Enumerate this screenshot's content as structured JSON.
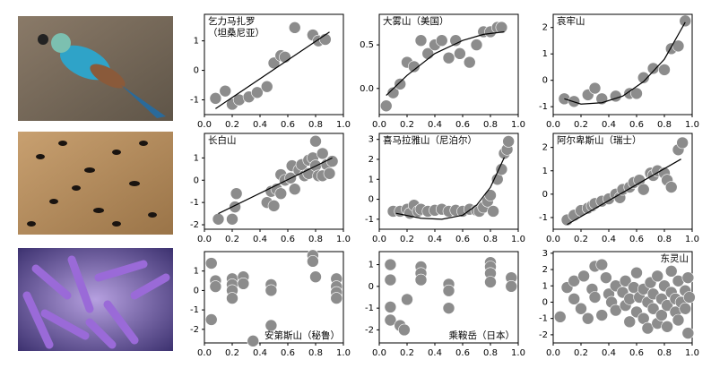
{
  "chart_data": [
    {
      "type": "scatter",
      "title": [
        "乞力马扎罗",
        "（坦桑尼亚）"
      ],
      "title_corner": "top-left",
      "color": "#8c8c8c",
      "xlim": [
        0,
        1
      ],
      "xticks": [
        {
          "value": 0,
          "label": "0.0"
        },
        0.2,
        0.4,
        0.6,
        0.8,
        {
          "value": 1,
          "label": "1.0"
        }
      ],
      "ylim": [
        -1.5,
        1.9
      ],
      "yticks": [
        -1,
        0,
        1
      ],
      "x": [
        0.08,
        0.15,
        0.2,
        0.25,
        0.32,
        0.38,
        0.45,
        0.5,
        0.55,
        0.58,
        0.65,
        0.78,
        0.82,
        0.87
      ],
      "y": [
        -0.95,
        -0.7,
        -1.15,
        -1.0,
        -0.9,
        -0.75,
        -0.55,
        0.25,
        0.5,
        0.45,
        1.45,
        1.2,
        1.0,
        1.05
      ],
      "fit": {
        "x": [
          0.08,
          0.9
        ],
        "y": [
          -1.3,
          1.3
        ]
      }
    },
    {
      "type": "scatter",
      "title": [
        "大雾山（美国）"
      ],
      "title_corner": "top-left",
      "color": "#8c8c8c",
      "xlim": [
        0,
        1
      ],
      "xticks": [
        {
          "value": 0,
          "label": "0.0"
        },
        0.2,
        0.4,
        0.6,
        0.8,
        {
          "value": 1,
          "label": "1.0"
        }
      ],
      "ylim": [
        -0.3,
        0.85
      ],
      "yticks": [
        {
          "value": 0,
          "label": "0.0"
        },
        0.5
      ],
      "x": [
        0.05,
        0.1,
        0.15,
        0.2,
        0.25,
        0.3,
        0.35,
        0.4,
        0.45,
        0.5,
        0.55,
        0.58,
        0.65,
        0.7,
        0.75,
        0.8,
        0.85,
        0.88
      ],
      "y": [
        -0.2,
        -0.05,
        0.05,
        0.3,
        0.25,
        0.55,
        0.4,
        0.5,
        0.55,
        0.35,
        0.55,
        0.4,
        0.3,
        0.5,
        0.65,
        0.65,
        0.7,
        0.7
      ],
      "fit": {
        "x": [
          0.05,
          0.2,
          0.4,
          0.6,
          0.75,
          0.9
        ],
        "y": [
          -0.08,
          0.15,
          0.4,
          0.55,
          0.62,
          0.65
        ]
      }
    },
    {
      "type": "scatter",
      "title": [
        "哀牢山"
      ],
      "title_corner": "top-left",
      "color": "#8c8c8c",
      "xlim": [
        0,
        1
      ],
      "xticks": [
        {
          "value": 0,
          "label": "0.0"
        },
        0.2,
        0.4,
        0.6,
        0.8,
        {
          "value": 1,
          "label": "1.0"
        }
      ],
      "ylim": [
        -1.3,
        2.5
      ],
      "yticks": [
        -1,
        0,
        1,
        2
      ],
      "x": [
        0.08,
        0.15,
        0.25,
        0.3,
        0.35,
        0.45,
        0.55,
        0.6,
        0.65,
        0.72,
        0.8,
        0.85,
        0.9,
        0.95
      ],
      "y": [
        -0.7,
        -0.8,
        -0.55,
        -0.3,
        -0.7,
        -0.6,
        -0.5,
        -0.5,
        0.1,
        0.45,
        0.4,
        1.2,
        1.3,
        2.25
      ],
      "fit": {
        "x": [
          0.08,
          0.2,
          0.35,
          0.5,
          0.65,
          0.8,
          0.95
        ],
        "y": [
          -0.7,
          -0.9,
          -0.85,
          -0.6,
          -0.05,
          0.8,
          2.2
        ]
      }
    },
    {
      "type": "scatter",
      "title": [
        "长白山"
      ],
      "title_corner": "top-left",
      "color": "#8c8c8c",
      "xlim": [
        0,
        1
      ],
      "xticks": [
        {
          "value": 0,
          "label": "0.0"
        },
        0.2,
        0.4,
        0.6,
        0.8,
        {
          "value": 1,
          "label": "1.0"
        }
      ],
      "ylim": [
        -2.2,
        2.1
      ],
      "yticks": [
        -2,
        -1,
        0,
        1
      ],
      "x": [
        0.1,
        0.2,
        0.22,
        0.23,
        0.45,
        0.48,
        0.5,
        0.52,
        0.55,
        0.55,
        0.58,
        0.62,
        0.63,
        0.65,
        0.68,
        0.7,
        0.72,
        0.75,
        0.75,
        0.78,
        0.8,
        0.8,
        0.82,
        0.85,
        0.85,
        0.88,
        0.9,
        0.92
      ],
      "y": [
        -1.75,
        -1.75,
        -1.2,
        -0.6,
        -1.0,
        -0.5,
        -1.15,
        -0.4,
        -0.6,
        0.25,
        0.0,
        0.1,
        0.65,
        -0.4,
        0.45,
        0.7,
        0.2,
        0.3,
        0.9,
        1.0,
        0.65,
        1.75,
        0.2,
        0.2,
        1.2,
        0.7,
        0.3,
        0.85
      ],
      "fit": {
        "x": [
          0.1,
          0.92
        ],
        "y": [
          -1.5,
          1.0
        ]
      }
    },
    {
      "type": "scatter",
      "title": [
        "喜马拉雅山（尼泊尔）"
      ],
      "title_corner": "top-left",
      "color": "#8c8c8c",
      "xlim": [
        0,
        1
      ],
      "xticks": [
        {
          "value": 0,
          "label": "0.0"
        },
        0.2,
        0.4,
        0.6,
        0.8,
        {
          "value": 1,
          "label": "1.0"
        }
      ],
      "ylim": [
        -1.5,
        3.3
      ],
      "yticks": [
        -1,
        0,
        1,
        2,
        3
      ],
      "x": [
        0.1,
        0.15,
        0.2,
        0.22,
        0.25,
        0.28,
        0.3,
        0.35,
        0.4,
        0.45,
        0.5,
        0.55,
        0.6,
        0.65,
        0.7,
        0.72,
        0.75,
        0.78,
        0.8,
        0.82,
        0.85,
        0.88,
        0.9,
        0.92,
        0.93
      ],
      "y": [
        -0.6,
        -0.6,
        -0.5,
        -0.7,
        -0.3,
        -0.6,
        -0.5,
        -0.6,
        -0.55,
        -0.5,
        -0.6,
        -0.55,
        -0.6,
        -0.5,
        -0.55,
        -0.6,
        -0.4,
        -0.1,
        0.2,
        -0.6,
        1.0,
        1.5,
        2.3,
        2.5,
        2.9
      ],
      "fit": {
        "x": [
          0.12,
          0.3,
          0.45,
          0.6,
          0.7,
          0.8,
          0.9
        ],
        "y": [
          -0.7,
          -0.95,
          -1.0,
          -0.8,
          -0.3,
          0.6,
          2.1
        ]
      }
    },
    {
      "type": "scatter",
      "title": [
        "阿尔卑斯山（瑞士）"
      ],
      "title_corner": "top-left",
      "color": "#8c8c8c",
      "xlim": [
        0,
        1
      ],
      "xticks": [
        {
          "value": 0,
          "label": "0.0"
        },
        0.2,
        0.4,
        0.6,
        0.8,
        {
          "value": 1,
          "label": "1.0"
        }
      ],
      "ylim": [
        -1.5,
        2.6
      ],
      "yticks": [
        -1,
        0,
        1,
        2
      ],
      "x": [
        0.1,
        0.15,
        0.2,
        0.25,
        0.28,
        0.3,
        0.35,
        0.4,
        0.45,
        0.48,
        0.5,
        0.55,
        0.58,
        0.62,
        0.65,
        0.7,
        0.72,
        0.75,
        0.8,
        0.82,
        0.85,
        0.9,
        0.93
      ],
      "y": [
        -1.1,
        -0.9,
        -0.7,
        -0.6,
        -0.5,
        -0.4,
        -0.3,
        -0.2,
        0.0,
        -0.15,
        0.2,
        0.3,
        0.5,
        0.6,
        0.2,
        0.9,
        0.8,
        1.0,
        0.9,
        0.6,
        0.3,
        1.9,
        2.2
      ],
      "fit": {
        "x": [
          0.1,
          0.92
        ],
        "y": [
          -1.3,
          1.5
        ]
      }
    },
    {
      "type": "scatter",
      "title": [
        "安第斯山（秘鲁）"
      ],
      "title_corner": "bottom-right",
      "color": "#8c8c8c",
      "xlim": [
        0,
        1
      ],
      "xticks": [
        {
          "value": 0,
          "label": "0.0"
        },
        0.2,
        0.4,
        0.6,
        0.8,
        {
          "value": 1,
          "label": "1.0"
        }
      ],
      "ylim": [
        -2.7,
        2.0
      ],
      "yticks": [
        -2,
        -1,
        0,
        1
      ],
      "x": [
        0.05,
        0.05,
        0.08,
        0.08,
        0.2,
        0.2,
        0.2,
        0.2,
        0.28,
        0.28,
        0.35,
        0.48,
        0.48,
        0.48,
        0.78,
        0.78,
        0.8,
        0.95,
        0.95,
        0.95,
        0.95
      ],
      "y": [
        1.4,
        -1.5,
        0.5,
        0.2,
        0.6,
        0.3,
        0.0,
        -0.4,
        0.7,
        0.35,
        -2.6,
        0.3,
        0.0,
        -1.8,
        1.8,
        1.5,
        0.7,
        0.6,
        0.2,
        -0.1,
        -0.4
      ]
    },
    {
      "type": "scatter",
      "title": [
        "乘鞍岳（日本）"
      ],
      "title_corner": "bottom-right",
      "color": "#8c8c8c",
      "xlim": [
        0,
        1
      ],
      "xticks": [
        {
          "value": 0,
          "label": "0.0"
        },
        0.2,
        0.4,
        0.6,
        0.8,
        {
          "value": 1,
          "label": "1.0"
        }
      ],
      "ylim": [
        -2.6,
        1.6
      ],
      "yticks": [
        -2,
        -1,
        0,
        1
      ],
      "x": [
        0.08,
        0.08,
        0.08,
        0.08,
        0.15,
        0.18,
        0.2,
        0.3,
        0.3,
        0.3,
        0.5,
        0.5,
        0.5,
        0.8,
        0.8,
        0.8,
        0.8,
        0.95,
        0.95
      ],
      "y": [
        1.0,
        0.3,
        -0.95,
        -1.55,
        -1.8,
        -2.0,
        -0.6,
        0.9,
        0.6,
        0.3,
        0.1,
        -0.2,
        -1.0,
        1.1,
        0.9,
        0.6,
        0.2,
        0.4,
        0.0
      ]
    },
    {
      "type": "scatter",
      "title": [
        "东灵山"
      ],
      "title_corner": "top-right",
      "color": "#8c8c8c",
      "xlim": [
        0,
        1
      ],
      "xticks": [
        {
          "value": 0,
          "label": "0.0"
        },
        0.2,
        0.4,
        0.6,
        0.8,
        {
          "value": 1,
          "label": "1.0"
        }
      ],
      "ylim": [
        -2.5,
        3.1
      ],
      "yticks": [
        -2,
        -1,
        0,
        1,
        2,
        3
      ],
      "x": [
        0.05,
        0.1,
        0.15,
        0.15,
        0.2,
        0.22,
        0.25,
        0.28,
        0.3,
        0.3,
        0.35,
        0.35,
        0.38,
        0.4,
        0.42,
        0.45,
        0.45,
        0.5,
        0.52,
        0.52,
        0.55,
        0.55,
        0.58,
        0.6,
        0.6,
        0.62,
        0.65,
        0.65,
        0.68,
        0.68,
        0.7,
        0.72,
        0.72,
        0.75,
        0.75,
        0.78,
        0.78,
        0.8,
        0.82,
        0.82,
        0.85,
        0.85,
        0.88,
        0.88,
        0.9,
        0.9,
        0.92,
        0.95,
        0.95,
        0.97,
        0.97,
        0.98
      ],
      "y": [
        -0.9,
        0.9,
        1.3,
        0.2,
        -0.4,
        1.6,
        -1.0,
        0.8,
        2.2,
        0.3,
        2.3,
        -0.8,
        1.5,
        0.5,
        0.0,
        1.0,
        -0.5,
        0.6,
        1.3,
        -0.2,
        0.2,
        -1.2,
        0.9,
        -0.6,
        1.8,
        0.3,
        -1.0,
        0.8,
        0.0,
        -1.6,
        1.2,
        -0.4,
        0.5,
        -1.3,
        1.6,
        0.2,
        -0.8,
        1.0,
        -0.2,
        -1.5,
        0.6,
        1.9,
        -0.6,
        0.2,
        1.3,
        -1.1,
        0.0,
        0.7,
        -0.4,
        -1.9,
        1.5,
        0.3
      ]
    }
  ]
}
